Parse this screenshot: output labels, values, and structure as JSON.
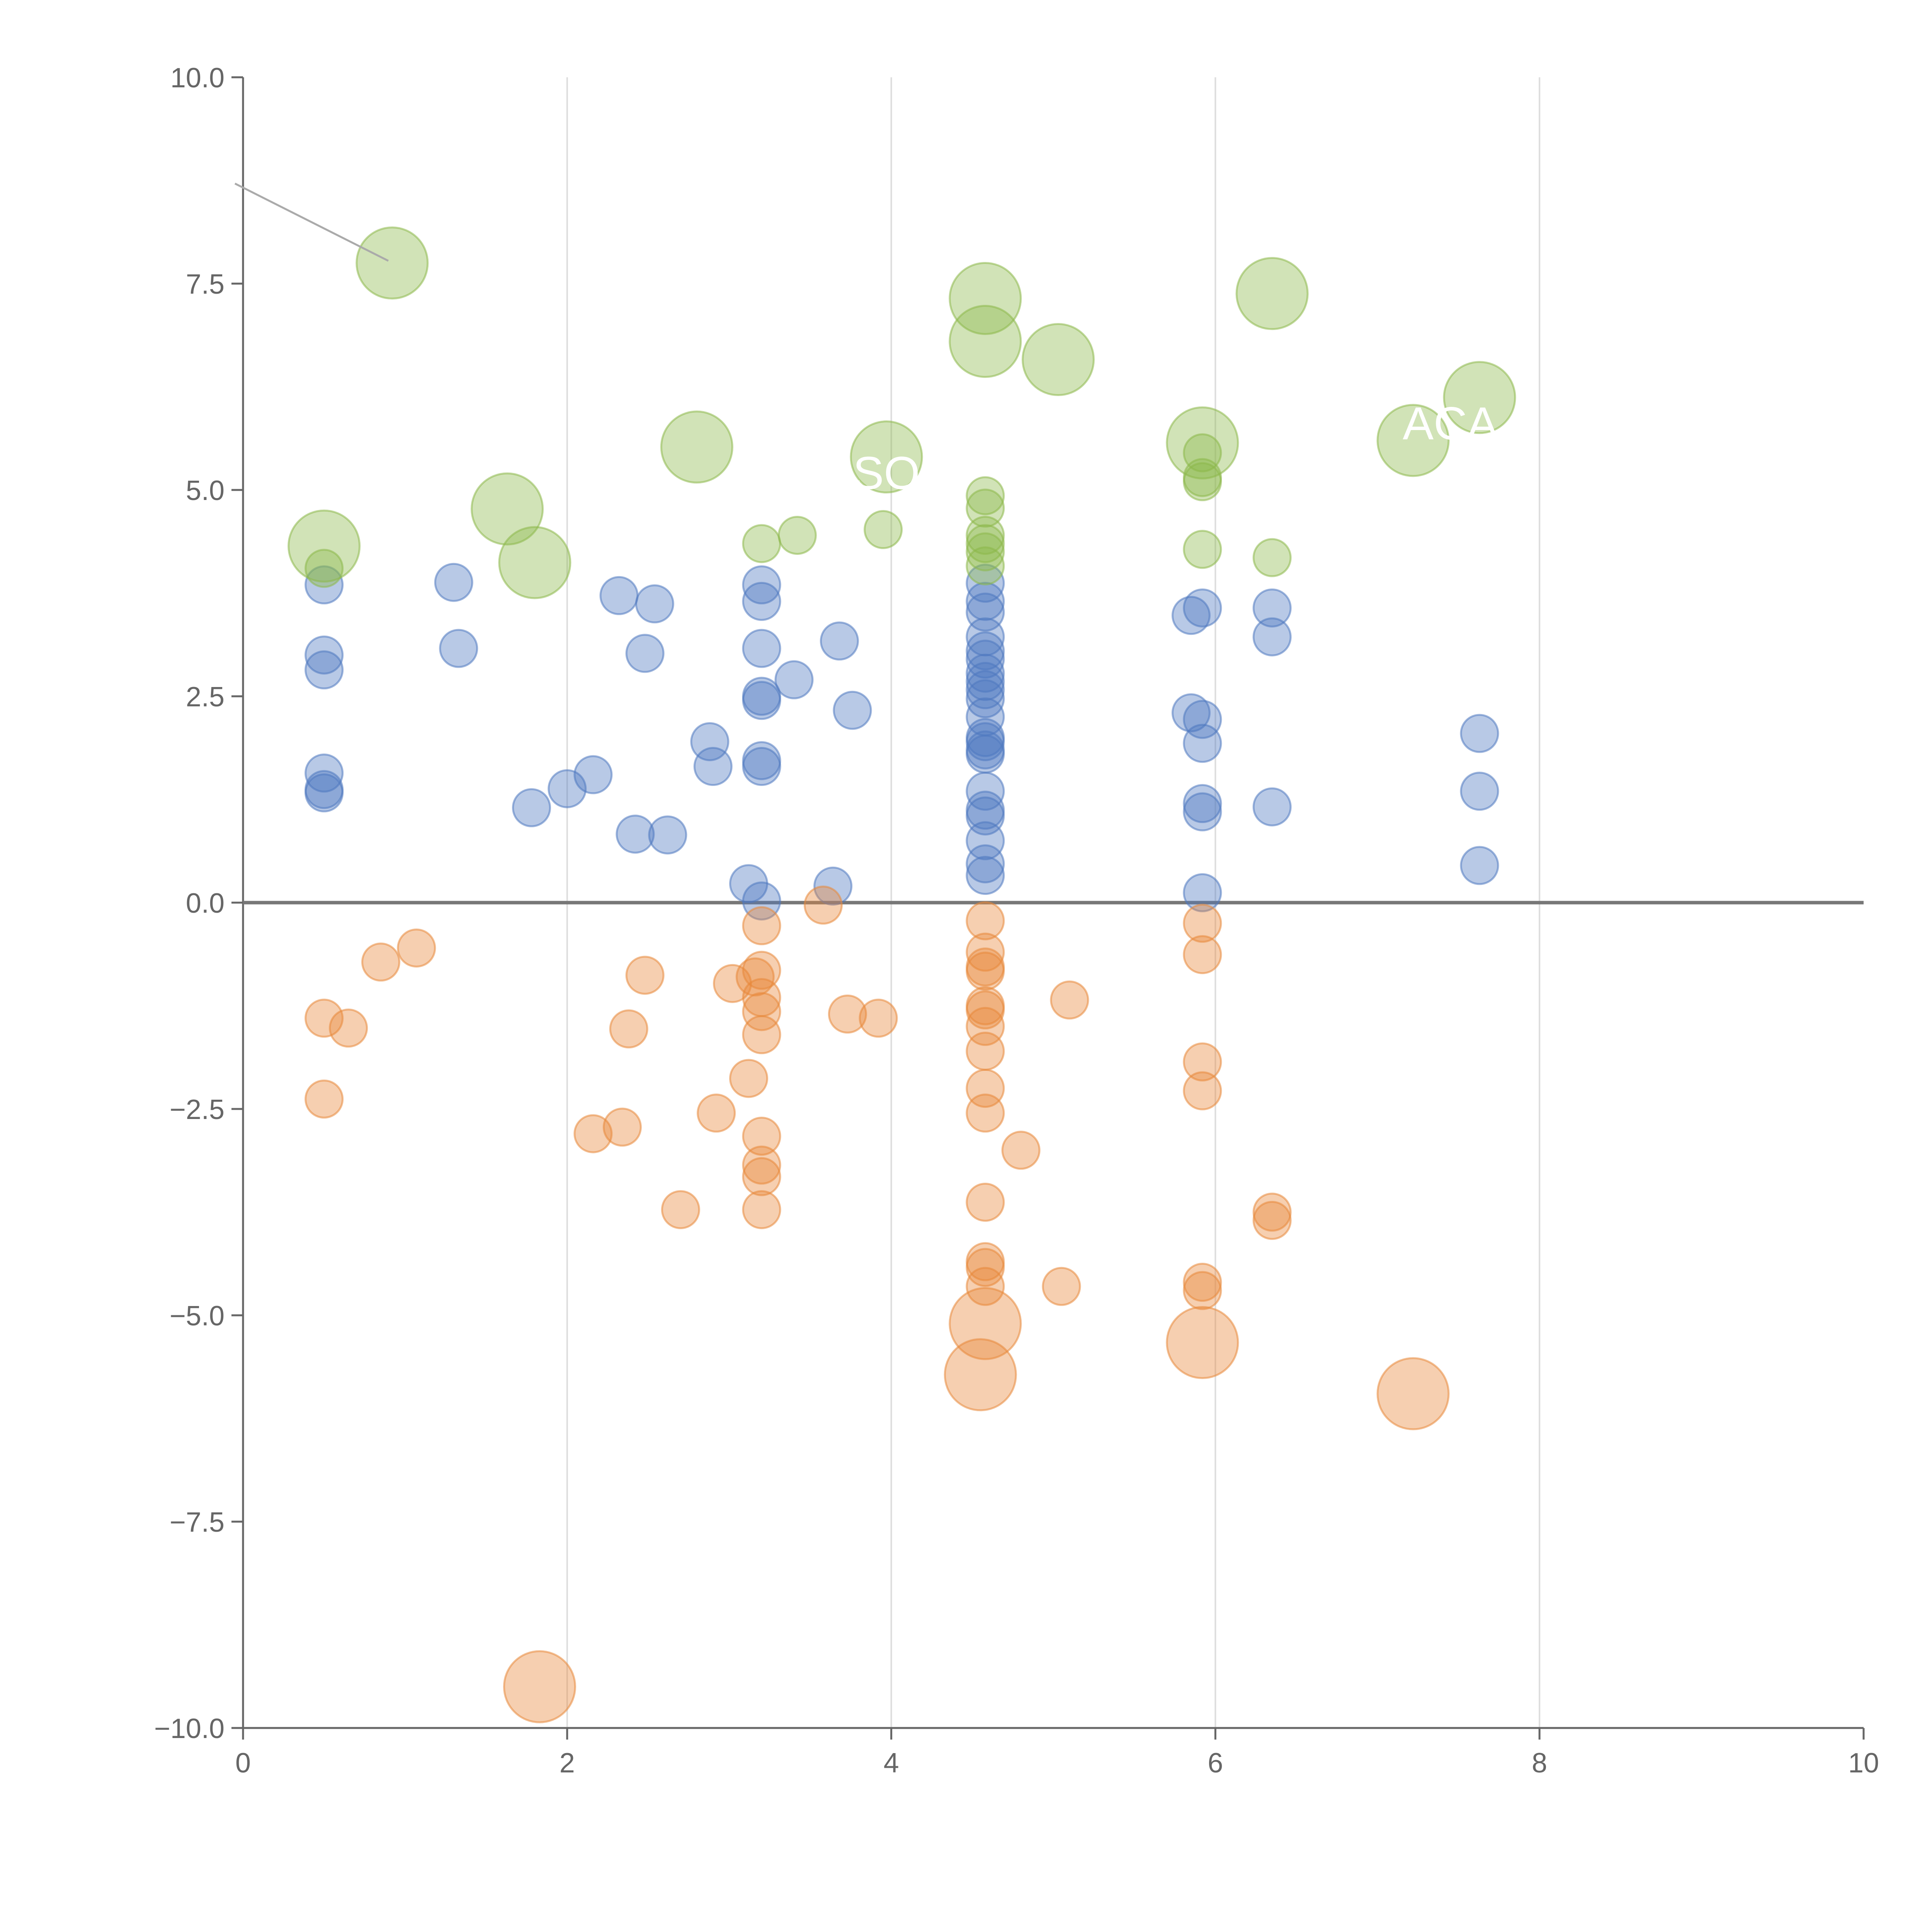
{
  "chart_data": {
    "type": "scatter",
    "title": "",
    "xlabel": "",
    "ylabel": "",
    "xlim": [
      0,
      10
    ],
    "ylim": [
      -10,
      10
    ],
    "x_ticks": [
      {
        "value": 0,
        "label": "0"
      },
      {
        "value": 2,
        "label": "2"
      },
      {
        "value": 4,
        "label": "4"
      },
      {
        "value": 6,
        "label": "6"
      },
      {
        "value": 8,
        "label": "8"
      },
      {
        "value": 10,
        "label": "10"
      }
    ],
    "y_ticks": [
      {
        "value": 10,
        "label": "10.0"
      },
      {
        "value": 7.5,
        "label": "7.5"
      },
      {
        "value": 5,
        "label": "5.0"
      },
      {
        "value": 2.5,
        "label": "2.5"
      },
      {
        "value": 0,
        "label": "0.0"
      },
      {
        "value": -2.5,
        "label": "−2.5"
      },
      {
        "value": -5,
        "label": "−5.0"
      },
      {
        "value": -7.5,
        "label": "−7.5"
      },
      {
        "value": -10,
        "label": "−10.0"
      }
    ],
    "grid": {
      "vertical": true,
      "horizontal": false
    },
    "zero_line": true,
    "colors": {
      "blue": "#4e79c0",
      "orange": "#e8883a",
      "green": "#8cb84a",
      "axis": "#666666",
      "grid": "#dddddd",
      "zero_line": "#777777"
    },
    "series": [
      {
        "color": "#4e79c0",
        "points": [
          [
            0.5,
            3.85
          ],
          [
            0.5,
            3.0
          ],
          [
            0.5,
            2.82
          ],
          [
            0.5,
            1.57
          ],
          [
            0.5,
            1.37
          ],
          [
            0.5,
            1.33
          ],
          [
            1.3,
            3.88
          ],
          [
            1.33,
            3.08
          ],
          [
            1.78,
            1.15
          ],
          [
            2.0,
            1.38
          ],
          [
            2.16,
            1.55
          ],
          [
            2.32,
            3.72
          ],
          [
            2.42,
            0.83
          ],
          [
            2.48,
            3.02
          ],
          [
            2.54,
            3.62
          ],
          [
            2.62,
            0.82
          ],
          [
            2.88,
            1.95
          ],
          [
            2.9,
            1.65
          ],
          [
            3.12,
            0.23
          ],
          [
            3.2,
            3.85
          ],
          [
            3.2,
            3.65
          ],
          [
            3.2,
            3.08
          ],
          [
            3.2,
            2.5
          ],
          [
            3.2,
            2.45
          ],
          [
            3.2,
            1.72
          ],
          [
            3.2,
            1.65
          ],
          [
            3.2,
            0.02
          ],
          [
            3.4,
            2.7
          ],
          [
            3.64,
            0.2
          ],
          [
            3.68,
            3.17
          ],
          [
            3.76,
            2.33
          ],
          [
            4.58,
            3.87
          ],
          [
            4.58,
            3.65
          ],
          [
            4.58,
            3.52
          ],
          [
            4.58,
            3.22
          ],
          [
            4.58,
            3.05
          ],
          [
            4.58,
            2.95
          ],
          [
            4.58,
            2.78
          ],
          [
            4.58,
            2.68
          ],
          [
            4.58,
            2.58
          ],
          [
            4.58,
            2.47
          ],
          [
            4.58,
            2.25
          ],
          [
            4.58,
            2.0
          ],
          [
            4.58,
            1.95
          ],
          [
            4.58,
            1.85
          ],
          [
            4.58,
            1.8
          ],
          [
            4.58,
            1.35
          ],
          [
            4.58,
            1.12
          ],
          [
            4.58,
            1.05
          ],
          [
            4.58,
            0.75
          ],
          [
            4.58,
            0.47
          ],
          [
            4.58,
            0.33
          ],
          [
            5.85,
            3.48
          ],
          [
            5.85,
            2.3
          ],
          [
            5.92,
            3.57
          ],
          [
            5.92,
            2.22
          ],
          [
            5.92,
            1.93
          ],
          [
            5.92,
            1.2
          ],
          [
            5.92,
            1.1
          ],
          [
            5.92,
            0.12
          ],
          [
            6.35,
            3.57
          ],
          [
            6.35,
            3.22
          ],
          [
            6.35,
            1.16
          ],
          [
            7.63,
            2.05
          ],
          [
            7.63,
            1.35
          ],
          [
            7.63,
            0.45
          ]
        ]
      },
      {
        "color": "#e8883a",
        "points": [
          [
            0.5,
            -1.4
          ],
          [
            0.5,
            -2.38
          ],
          [
            0.65,
            -1.52
          ],
          [
            0.85,
            -0.72
          ],
          [
            1.07,
            -0.55
          ],
          [
            2.16,
            -2.8
          ],
          [
            2.34,
            -2.72
          ],
          [
            2.38,
            -1.53
          ],
          [
            2.48,
            -0.88
          ],
          [
            2.7,
            -3.72
          ],
          [
            2.92,
            -2.55
          ],
          [
            3.02,
            -0.98
          ],
          [
            3.12,
            -2.13
          ],
          [
            3.16,
            -0.9
          ],
          [
            3.2,
            -0.28
          ],
          [
            3.2,
            -0.82
          ],
          [
            3.2,
            -1.15
          ],
          [
            3.2,
            -1.32
          ],
          [
            3.2,
            -1.6
          ],
          [
            3.2,
            -2.83
          ],
          [
            3.2,
            -3.18
          ],
          [
            3.2,
            -3.32
          ],
          [
            3.2,
            -3.72
          ],
          [
            3.58,
            -0.03
          ],
          [
            3.73,
            -1.35
          ],
          [
            3.92,
            -1.4
          ],
          [
            4.58,
            -0.22
          ],
          [
            4.58,
            -0.6
          ],
          [
            4.58,
            -0.78
          ],
          [
            4.58,
            -0.83
          ],
          [
            4.58,
            -1.25
          ],
          [
            4.58,
            -1.3
          ],
          [
            4.58,
            -1.5
          ],
          [
            4.58,
            -1.8
          ],
          [
            4.58,
            -2.25
          ],
          [
            4.58,
            -2.55
          ],
          [
            4.58,
            -3.63
          ],
          [
            4.58,
            -4.35
          ],
          [
            4.58,
            -4.42
          ],
          [
            4.58,
            -4.65
          ],
          [
            4.8,
            -3
          ],
          [
            5.05,
            -4.65
          ],
          [
            5.1,
            -1.18
          ],
          [
            5.92,
            -0.25
          ],
          [
            5.92,
            -0.63
          ],
          [
            5.92,
            -1.93
          ],
          [
            5.92,
            -2.28
          ],
          [
            5.92,
            -4.6
          ],
          [
            5.92,
            -4.7
          ],
          [
            6.35,
            -3.75
          ],
          [
            6.35,
            -3.85
          ]
        ]
      },
      {
        "color": "#8cb84a",
        "points": [
          [
            0.5,
            4.05
          ],
          [
            3.2,
            4.35
          ],
          [
            3.42,
            4.45
          ],
          [
            3.95,
            4.52
          ],
          [
            4.58,
            4.93
          ],
          [
            4.58,
            4.78
          ],
          [
            4.58,
            4.45
          ],
          [
            4.58,
            4.35
          ],
          [
            4.58,
            4.25
          ],
          [
            4.58,
            4.08
          ],
          [
            5.92,
            5.45
          ],
          [
            5.92,
            5.15
          ],
          [
            5.92,
            5.1
          ],
          [
            5.92,
            4.28
          ],
          [
            6.35,
            4.18
          ]
        ]
      }
    ],
    "bubbles": [
      {
        "x": 0.92,
        "y": 7.75,
        "color": "#8cb84a"
      },
      {
        "x": 0.5,
        "y": 4.32,
        "color": "#8cb84a"
      },
      {
        "x": 1.63,
        "y": 4.77,
        "color": "#8cb84a"
      },
      {
        "x": 1.8,
        "y": 4.12,
        "color": "#8cb84a"
      },
      {
        "x": 2.8,
        "y": 5.52,
        "color": "#8cb84a"
      },
      {
        "x": 3.97,
        "y": 5.4,
        "color": "#8cb84a"
      },
      {
        "x": 4.58,
        "y": 7.32,
        "color": "#8cb84a"
      },
      {
        "x": 4.58,
        "y": 6.8,
        "color": "#8cb84a"
      },
      {
        "x": 5.03,
        "y": 6.58,
        "color": "#8cb84a"
      },
      {
        "x": 5.92,
        "y": 5.57,
        "color": "#8cb84a"
      },
      {
        "x": 6.35,
        "y": 7.38,
        "color": "#8cb84a"
      },
      {
        "x": 7.22,
        "y": 5.6,
        "color": "#8cb84a"
      },
      {
        "x": 7.63,
        "y": 6.12,
        "color": "#8cb84a"
      },
      {
        "x": 4.58,
        "y": -5.1,
        "color": "#e8883a"
      },
      {
        "x": 4.55,
        "y": -5.72,
        "color": "#e8883a"
      },
      {
        "x": 5.92,
        "y": -5.33,
        "color": "#e8883a"
      },
      {
        "x": 7.22,
        "y": -5.95,
        "color": "#e8883a"
      },
      {
        "x": 1.83,
        "y": -9.5,
        "color": "#e8883a"
      }
    ],
    "annotations": [
      {
        "text": "SO",
        "x": 3.97,
        "y": 5.2
      },
      {
        "text": "ACA",
        "x": 7.45,
        "y": 5.8
      }
    ]
  }
}
